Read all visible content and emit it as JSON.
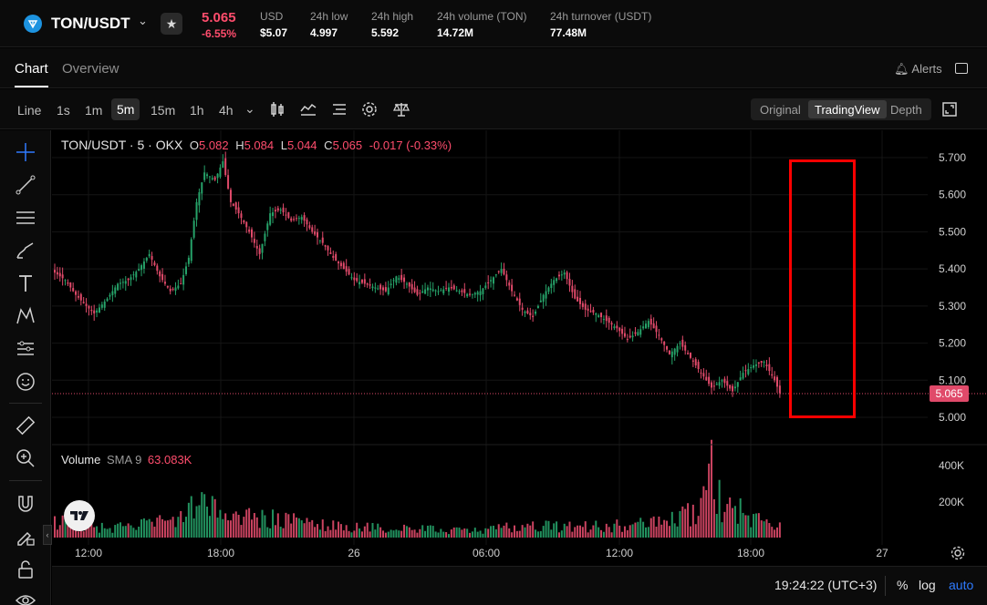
{
  "header": {
    "pair": "TON/USDT",
    "price": "5.065",
    "change": "-6.55%",
    "stats": [
      {
        "label": "USD",
        "value": "$5.07"
      },
      {
        "label": "24h low",
        "value": "4.997"
      },
      {
        "label": "24h high",
        "value": "5.592"
      },
      {
        "label": "24h volume (TON)",
        "value": "14.72M"
      },
      {
        "label": "24h turnover (USDT)",
        "value": "77.48M"
      }
    ]
  },
  "tabs": {
    "chart": "Chart",
    "overview": "Overview",
    "alerts": "Alerts"
  },
  "toolbar": {
    "timeframes": [
      "Line",
      "1s",
      "1m",
      "5m",
      "15m",
      "1h",
      "4h"
    ],
    "active_timeframe": "5m",
    "views": [
      "Original",
      "TradingView",
      "Depth"
    ],
    "active_view": "TradingView"
  },
  "legend": {
    "symbol": "TON/USDT · 5 · OKX",
    "o_label": "O",
    "o": "5.082",
    "h_label": "H",
    "h": "5.084",
    "l_label": "L",
    "l": "5.044",
    "c_label": "C",
    "c": "5.065",
    "change": "-0.017 (-0.33%)"
  },
  "volume_legend": {
    "name": "Volume",
    "sma": "SMA 9",
    "value": "63.083K"
  },
  "current_price_tag": "5.065",
  "footer": {
    "time": "19:24:22 (UTC+3)",
    "percent": "%",
    "log": "log",
    "auto": "auto"
  },
  "colors": {
    "up": "#26a269",
    "down": "#e04a6a",
    "accent": "#2f7bff",
    "highlight": "#ff0000"
  },
  "chart_data": {
    "type": "candlestick",
    "price_axis": [
      "5.700",
      "5.600",
      "5.500",
      "5.400",
      "5.300",
      "5.200",
      "5.100",
      "5.000"
    ],
    "volume_axis": [
      "400K",
      "200K"
    ],
    "time_axis": [
      "12:00",
      "18:00",
      "26",
      "06:00",
      "12:00",
      "18:00",
      "27"
    ],
    "ylim": [
      4.97,
      5.73
    ],
    "current_price": 5.065,
    "close_path": [
      [
        0,
        5.39
      ],
      [
        4,
        5.37
      ],
      [
        8,
        5.33
      ],
      [
        12,
        5.3
      ],
      [
        15,
        5.28
      ],
      [
        20,
        5.32
      ],
      [
        24,
        5.36
      ],
      [
        28,
        5.37
      ],
      [
        32,
        5.4
      ],
      [
        36,
        5.44
      ],
      [
        40,
        5.38
      ],
      [
        44,
        5.34
      ],
      [
        48,
        5.36
      ],
      [
        51,
        5.43
      ],
      [
        54,
        5.58
      ],
      [
        57,
        5.66
      ],
      [
        61,
        5.64
      ],
      [
        64,
        5.69
      ],
      [
        67,
        5.58
      ],
      [
        70,
        5.55
      ],
      [
        74,
        5.5
      ],
      [
        78,
        5.44
      ],
      [
        82,
        5.55
      ],
      [
        86,
        5.56
      ],
      [
        90,
        5.53
      ],
      [
        94,
        5.54
      ],
      [
        98,
        5.5
      ],
      [
        102,
        5.47
      ],
      [
        106,
        5.43
      ],
      [
        110,
        5.4
      ],
      [
        114,
        5.37
      ],
      [
        118,
        5.36
      ],
      [
        122,
        5.35
      ],
      [
        126,
        5.34
      ],
      [
        130,
        5.38
      ],
      [
        134,
        5.36
      ],
      [
        138,
        5.33
      ],
      [
        142,
        5.35
      ],
      [
        146,
        5.34
      ],
      [
        150,
        5.35
      ],
      [
        154,
        5.34
      ],
      [
        158,
        5.33
      ],
      [
        162,
        5.34
      ],
      [
        166,
        5.37
      ],
      [
        170,
        5.4
      ],
      [
        174,
        5.34
      ],
      [
        178,
        5.29
      ],
      [
        182,
        5.27
      ],
      [
        186,
        5.33
      ],
      [
        190,
        5.37
      ],
      [
        194,
        5.39
      ],
      [
        198,
        5.32
      ],
      [
        202,
        5.29
      ],
      [
        206,
        5.28
      ],
      [
        210,
        5.26
      ],
      [
        214,
        5.24
      ],
      [
        218,
        5.21
      ],
      [
        222,
        5.23
      ],
      [
        226,
        5.26
      ],
      [
        230,
        5.22
      ],
      [
        234,
        5.17
      ],
      [
        238,
        5.2
      ],
      [
        242,
        5.16
      ],
      [
        246,
        5.12
      ],
      [
        250,
        5.08
      ],
      [
        254,
        5.1
      ],
      [
        258,
        5.07
      ],
      [
        262,
        5.12
      ],
      [
        266,
        5.14
      ],
      [
        270,
        5.15
      ],
      [
        274,
        5.1
      ],
      [
        276,
        5.065
      ]
    ],
    "volume_profile": [
      [
        0,
        110
      ],
      [
        20,
        60
      ],
      [
        50,
        120
      ],
      [
        54,
        260
      ],
      [
        60,
        180
      ],
      [
        70,
        140
      ],
      [
        90,
        110
      ],
      [
        110,
        70
      ],
      [
        130,
        60
      ],
      [
        160,
        45
      ],
      [
        180,
        80
      ],
      [
        200,
        70
      ],
      [
        230,
        95
      ],
      [
        240,
        150
      ],
      [
        246,
        180
      ],
      [
        250,
        440
      ],
      [
        254,
        190
      ],
      [
        258,
        200
      ],
      [
        266,
        120
      ],
      [
        276,
        70
      ]
    ]
  }
}
